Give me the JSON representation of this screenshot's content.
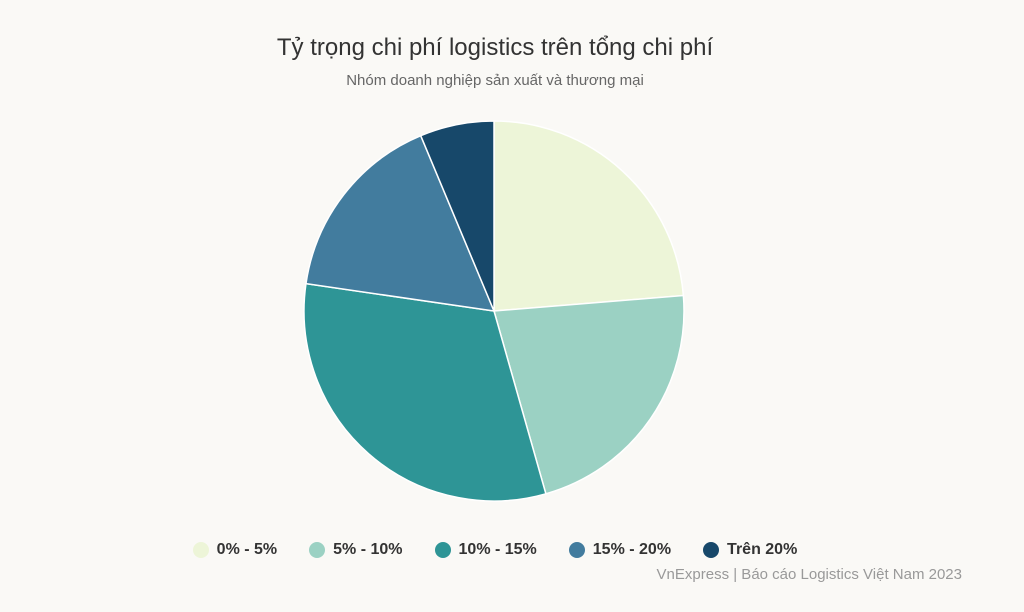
{
  "chart_data": {
    "type": "pie",
    "title": "Tỷ trọng chi phí logistics trên tổng chi phí",
    "subtitle": "Nhóm doanh nghiệp sản xuất và thương mại",
    "categories": [
      "0% - 5%",
      "5% - 10%",
      "10% - 15%",
      "15% - 20%",
      "Trên 20%"
    ],
    "values": [
      23.7,
      21.9,
      31.7,
      16.4,
      6.3
    ],
    "colors": [
      "#edf5d8",
      "#9bd1c3",
      "#2e9596",
      "#427c9e",
      "#17486a"
    ],
    "legend_position": "bottom-center"
  },
  "credits": "VnExpress | Báo cáo Logistics Việt Nam 2023"
}
